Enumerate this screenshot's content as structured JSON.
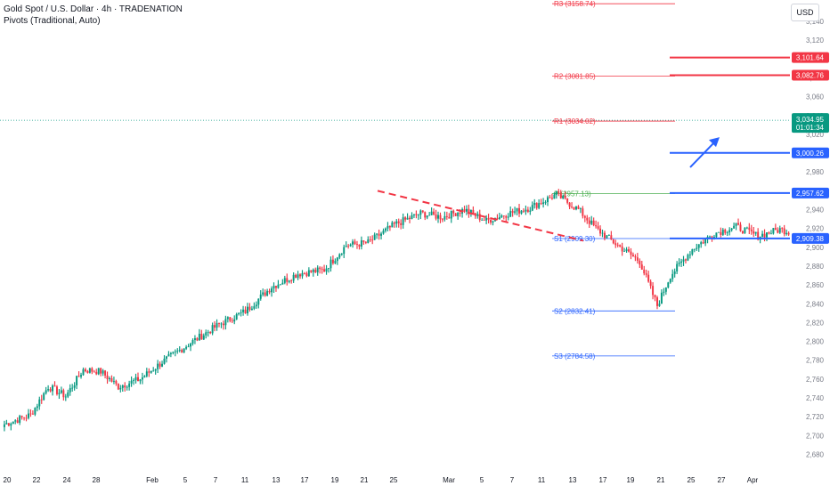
{
  "header": {
    "symbol_line": "Gold Spot / U.S. Dollar · 4h · TRADENATION",
    "indicator_line": "Pivots (Traditional, Auto)",
    "currency": "USD"
  },
  "colors": {
    "bull": "#089981",
    "bear": "#f23645",
    "resistance": "#f23645",
    "support": "#2962ff",
    "pivot": "#4caf50",
    "trendline": "#f23645",
    "arrow": "#2962ff",
    "price_tag": "#089981"
  },
  "chart_data": {
    "type": "candlestick",
    "ylim": [
      2670,
      3160
    ],
    "y_ticks": [
      2680,
      2700,
      2720,
      2740,
      2760,
      2780,
      2800,
      2820,
      2840,
      2860,
      2880,
      2900,
      2920,
      2940,
      2960,
      2980,
      3000,
      3020,
      3040,
      3060,
      3080,
      3100,
      3120,
      3140
    ],
    "x_ticks": [
      "20",
      "22",
      "24",
      "28",
      "Feb",
      "5",
      "7",
      "11",
      "13",
      "17",
      "19",
      "21",
      "25",
      "Mar",
      "5",
      "7",
      "11",
      "13",
      "17",
      "19",
      "21",
      "25",
      "27",
      "Apr"
    ],
    "anchors": [
      [
        0,
        2712
      ],
      [
        12,
        2722
      ],
      [
        20,
        2752
      ],
      [
        28,
        2742
      ],
      [
        36,
        2770
      ],
      [
        44,
        2768
      ],
      [
        52,
        2752
      ],
      [
        62,
        2760
      ],
      [
        72,
        2778
      ],
      [
        86,
        2800
      ],
      [
        98,
        2818
      ],
      [
        110,
        2832
      ],
      [
        122,
        2858
      ],
      [
        134,
        2872
      ],
      [
        146,
        2876
      ],
      [
        156,
        2902
      ],
      [
        166,
        2905
      ],
      [
        178,
        2924
      ],
      [
        190,
        2936
      ],
      [
        200,
        2932
      ],
      [
        210,
        2940
      ],
      [
        220,
        2928
      ],
      [
        230,
        2936
      ],
      [
        240,
        2942
      ],
      [
        252,
        2956
      ],
      [
        262,
        2940
      ],
      [
        270,
        2920
      ],
      [
        280,
        2902
      ],
      [
        290,
        2885
      ],
      [
        298,
        2838
      ],
      [
        304,
        2870
      ],
      [
        314,
        2898
      ],
      [
        324,
        2915
      ],
      [
        334,
        2922
      ],
      [
        344,
        2912
      ],
      [
        354,
        2919
      ],
      [
        364,
        2913
      ],
      [
        372,
        2898
      ],
      [
        380,
        2922
      ],
      [
        388,
        2960
      ],
      [
        396,
        2985
      ],
      [
        404,
        2984
      ],
      [
        412,
        3000
      ],
      [
        420,
        3025
      ],
      [
        428,
        3040
      ],
      [
        436,
        3035
      ],
      [
        444,
        3044
      ],
      [
        452,
        3037
      ],
      [
        458,
        3034.95
      ]
    ],
    "current_price": "3,034.95",
    "countdown": "01:01:34",
    "pivots": [
      {
        "name": "R3",
        "value": "3158.74",
        "label": "R3 (3158.74)"
      },
      {
        "name": "R2",
        "value": "3081.85",
        "label": "R2 (3081.85)"
      },
      {
        "name": "R1",
        "value": "3034.02",
        "label": "R1 (3034.02)"
      },
      {
        "name": "P",
        "value": "2957.13",
        "label": "P (2957.13)"
      },
      {
        "name": "S1",
        "value": "2909.30",
        "label": "S1 (2909.30)"
      },
      {
        "name": "S2",
        "value": "2832.41",
        "label": "S2 (2832.41)"
      },
      {
        "name": "S3",
        "value": "2784.58",
        "label": "S3 (2784.58)"
      }
    ],
    "levels": [
      {
        "value": "3,101.64",
        "role": "resistance"
      },
      {
        "value": "3,082.76",
        "role": "resistance"
      },
      {
        "value": "3,000.26",
        "role": "support"
      },
      {
        "value": "2,957.62",
        "role": "support"
      },
      {
        "value": "2,909.38",
        "role": "support"
      }
    ],
    "trendline": {
      "from_bar": 255,
      "from_price": 2960,
      "to_bar": 392,
      "to_price": 2907
    },
    "arrow": {
      "from_bar": 482,
      "from_price": 2985,
      "to_bar": 502,
      "to_price": 3017
    }
  }
}
